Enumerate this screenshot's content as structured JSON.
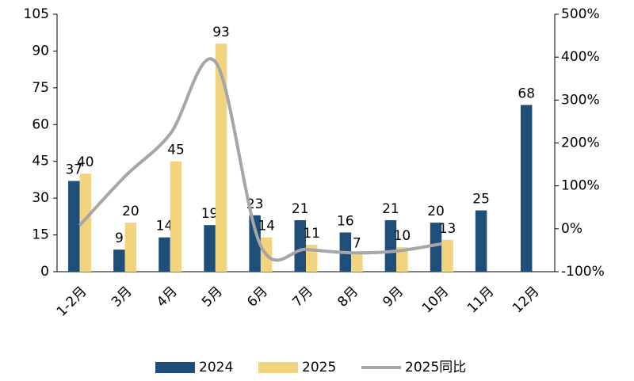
{
  "chart_data": {
    "type": "bar-line",
    "categories": [
      "1-2月",
      "3月",
      "4月",
      "5月",
      "6月",
      "7月",
      "8月",
      "9月",
      "10月",
      "11月",
      "12月"
    ],
    "series": [
      {
        "name": "2024",
        "color": "#1f4e79",
        "values": [
          37,
          9,
          14,
          19,
          23,
          21,
          16,
          21,
          20,
          25,
          68
        ]
      },
      {
        "name": "2025",
        "color": "#f2d37e",
        "values": [
          40,
          20,
          45,
          93,
          14,
          11,
          7,
          10,
          13,
          null,
          null
        ]
      },
      {
        "name": "2025同比",
        "color": "#a6a6a6",
        "axis": "y2",
        "values": [
          8,
          122,
          221,
          389,
          -39,
          -48,
          -56,
          -52,
          -35,
          null,
          null
        ]
      }
    ],
    "ylim": [
      0,
      105
    ],
    "yticks": [
      0,
      15,
      30,
      45,
      60,
      75,
      90,
      105
    ],
    "y2lim": [
      -100,
      500
    ],
    "y2ticks": [
      {
        "value": -100,
        "label": "-100%"
      },
      {
        "value": 0,
        "label": "0%"
      },
      {
        "value": 100,
        "label": "100%"
      },
      {
        "value": 200,
        "label": "200%"
      },
      {
        "value": 300,
        "label": "300%"
      },
      {
        "value": 400,
        "label": "400%"
      },
      {
        "value": 500,
        "label": "500%"
      }
    ],
    "legend": "bottom"
  }
}
